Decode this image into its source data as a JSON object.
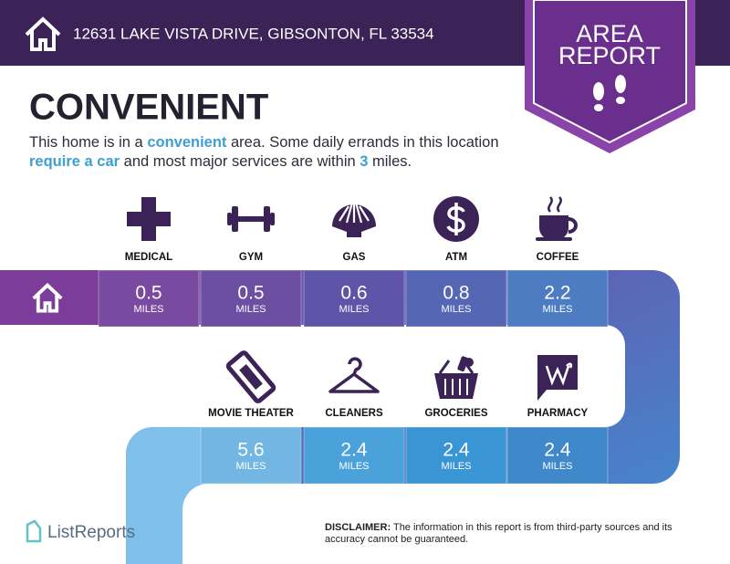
{
  "header": {
    "address": "12631 LAKE VISTA DRIVE, GIBSONTON, FL 33534",
    "badge": [
      "AREA",
      "REPORT"
    ]
  },
  "rating": "CONVENIENT",
  "description": [
    {
      "text": "This home is in a ",
      "highlight": false
    },
    {
      "text": "convenient",
      "highlight": true
    },
    {
      "text": " area. Some daily errands in this location ",
      "highlight": false
    },
    {
      "text": "require a car",
      "highlight": true
    },
    {
      "text": " and most major services are within ",
      "highlight": false
    },
    {
      "text": "3",
      "highlight": true
    },
    {
      "text": " miles.",
      "highlight": false
    }
  ],
  "unit": "MILES",
  "amenities": [
    {
      "label": "MEDICAL",
      "distance": 0.5
    },
    {
      "label": "GYM",
      "distance": 0.5
    },
    {
      "label": "GAS",
      "distance": 0.6
    },
    {
      "label": "ATM",
      "distance": 0.8
    },
    {
      "label": "COFFEE",
      "distance": 2.2
    },
    {
      "label": "MOVIE THEATER",
      "distance": 5.6
    },
    {
      "label": "CLEANERS",
      "distance": 2.4
    },
    {
      "label": "GROCERIES",
      "distance": 2.4
    },
    {
      "label": "PHARMACY",
      "distance": 2.4
    }
  ],
  "footer": {
    "brand": "ListReports",
    "disclaimer_label": "DISCLAIMER:",
    "disclaimer": "The information in this report is from third-party sources and its accuracy cannot be guaranteed."
  }
}
